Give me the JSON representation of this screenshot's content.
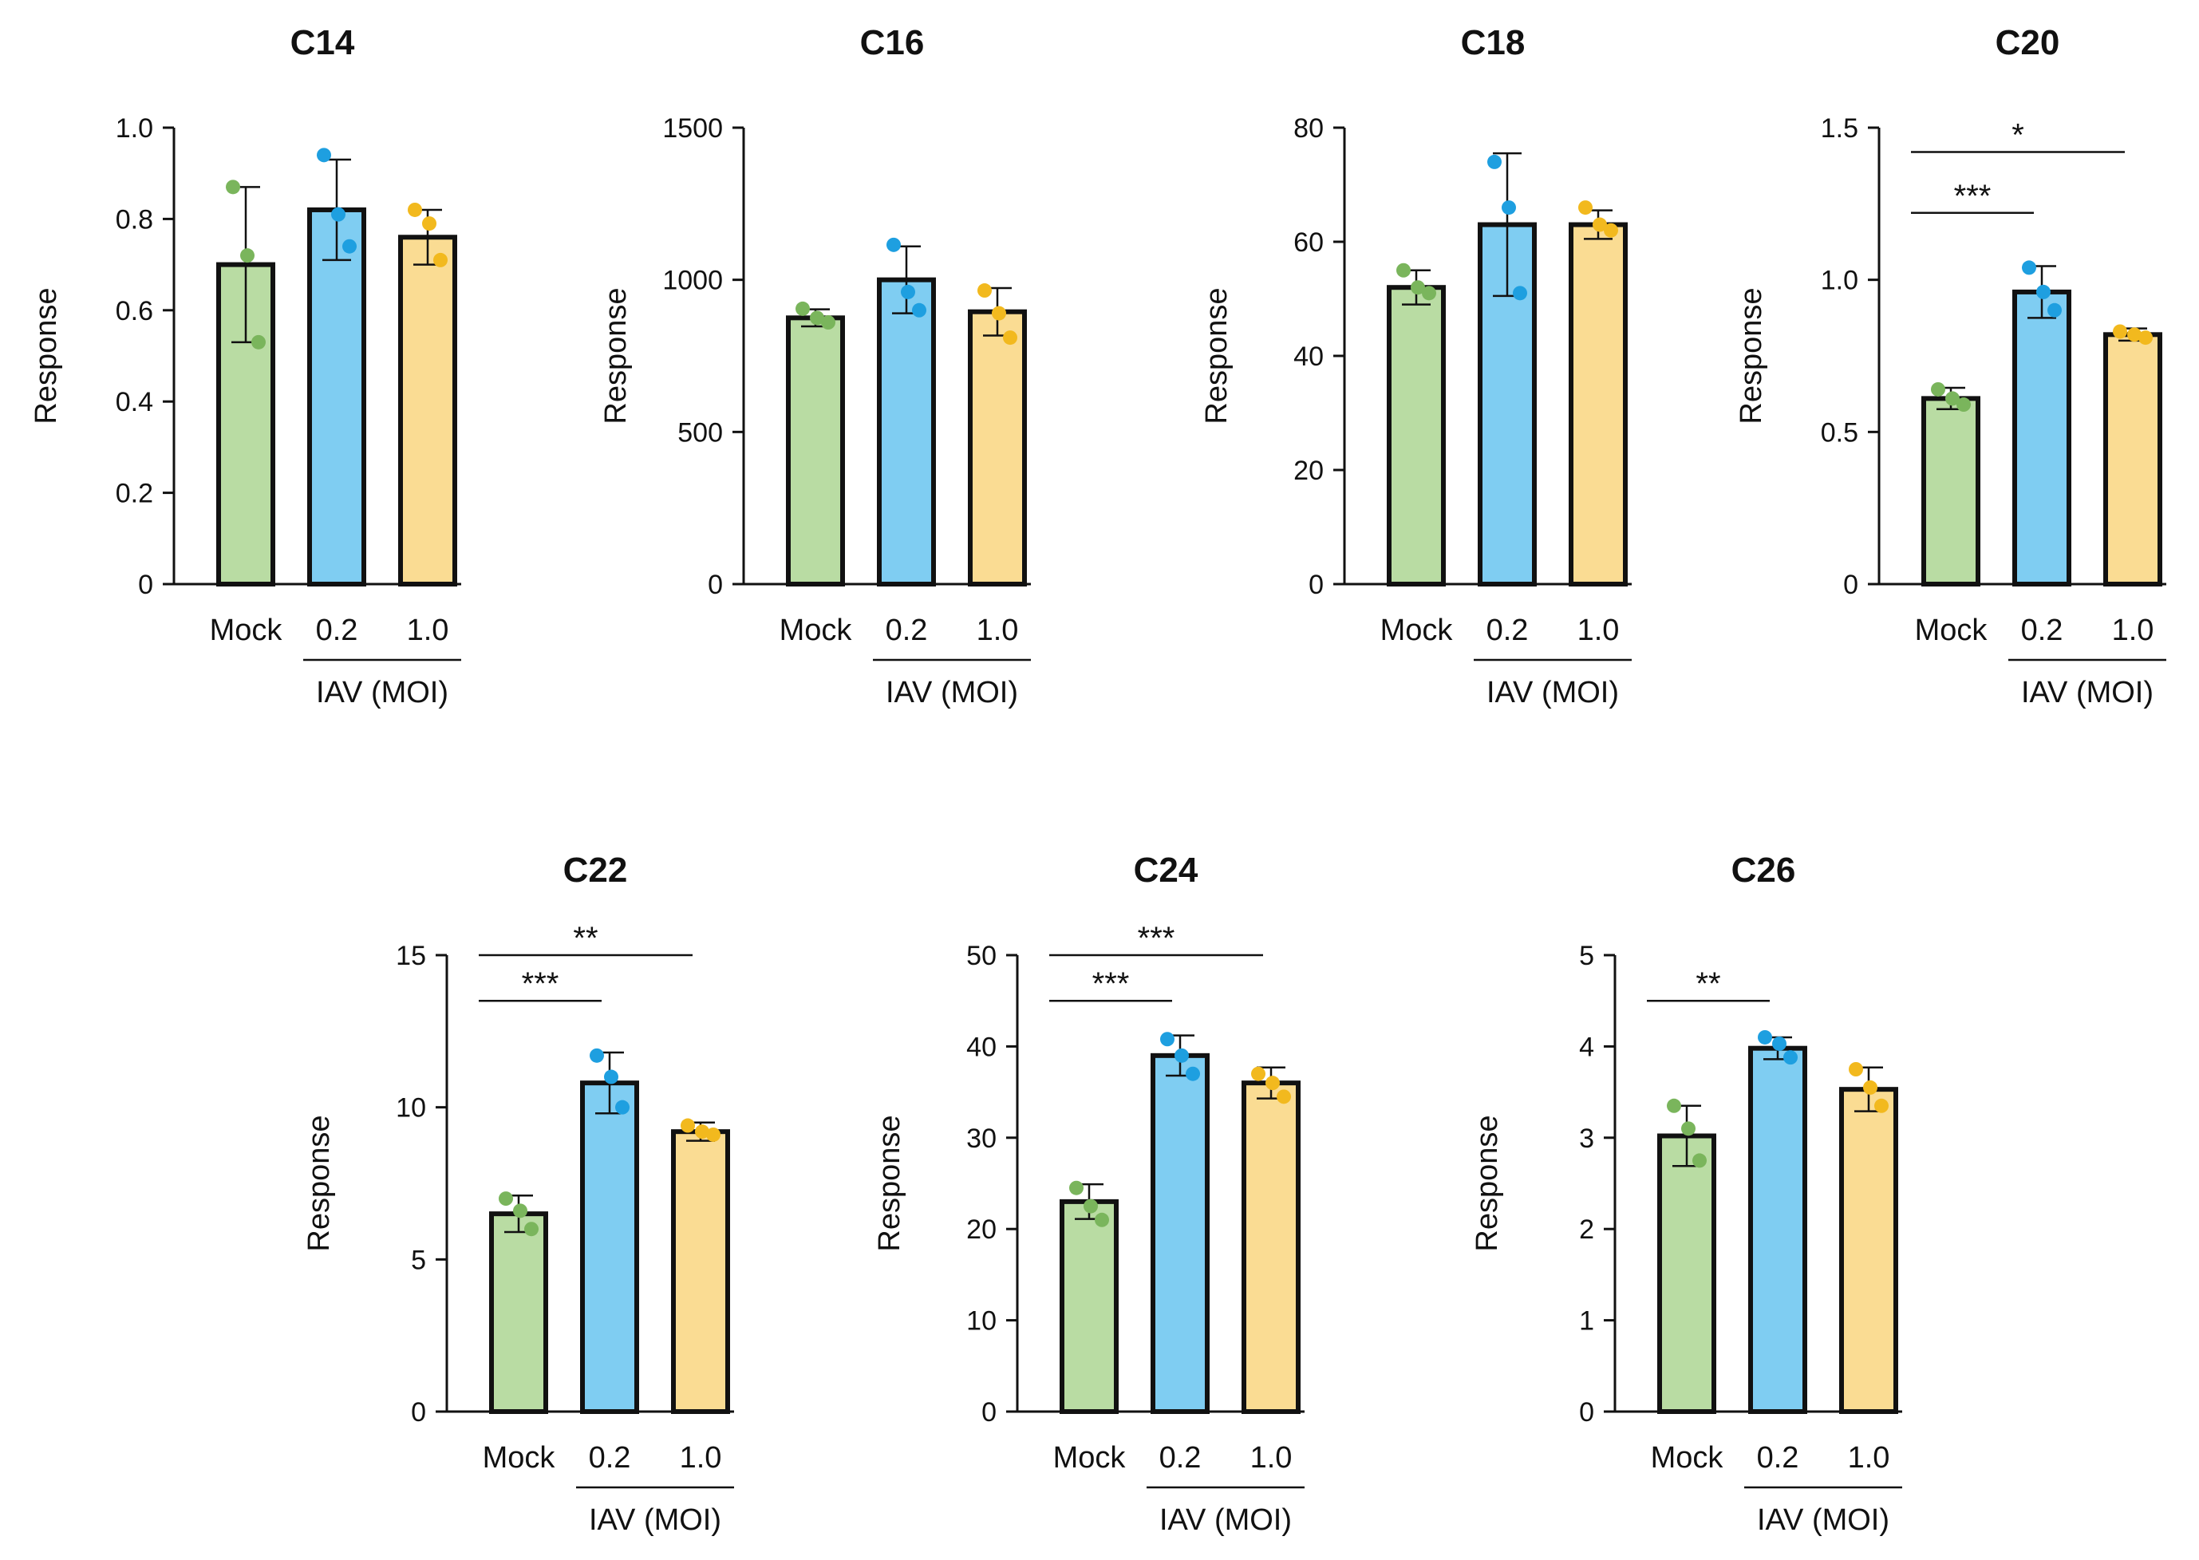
{
  "colors": {
    "mock": "#b9dca3",
    "moi02": "#7fcdf2",
    "moi10": "#fadc93",
    "mock_dot": "#7ab55c",
    "moi02_dot": "#1e9fe0",
    "moi10_dot": "#f2b91e",
    "axis": "#111111"
  },
  "chart_data": [
    {
      "type": "bar",
      "title": "C14",
      "ylabel": "Response",
      "categories": [
        "Mock",
        "0.2",
        "1.0"
      ],
      "group_label": "IAV (MOI)",
      "ylim": [
        0,
        1.0
      ],
      "yticks": [
        0,
        0.2,
        0.4,
        0.6,
        0.8,
        1.0
      ],
      "ytick_labels": [
        "0",
        "0.2",
        "0.4",
        "0.6",
        "0.8",
        "1.0"
      ],
      "values": [
        0.7,
        0.82,
        0.76
      ],
      "errors": [
        0.17,
        0.11,
        0.06
      ],
      "points": [
        [
          0.87,
          0.72,
          0.53
        ],
        [
          0.94,
          0.81,
          0.74
        ],
        [
          0.82,
          0.79,
          0.71
        ]
      ],
      "significance": []
    },
    {
      "type": "bar",
      "title": "C16",
      "ylabel": "Response",
      "categories": [
        "Mock",
        "0.2",
        "1.0"
      ],
      "group_label": "IAV (MOI)",
      "ylim": [
        0,
        1500
      ],
      "yticks": [
        0,
        500,
        1000,
        1500
      ],
      "ytick_labels": [
        "0",
        "500",
        "1000",
        "1500"
      ],
      "values": [
        875,
        1000,
        895
      ],
      "errors": [
        28,
        110,
        78
      ],
      "points": [
        [
          905,
          875,
          860
        ],
        [
          1115,
          960,
          900
        ],
        [
          965,
          890,
          810
        ]
      ],
      "significance": []
    },
    {
      "type": "bar",
      "title": "C18",
      "ylabel": "Response",
      "categories": [
        "Mock",
        "0.2",
        "1.0"
      ],
      "group_label": "IAV (MOI)",
      "ylim": [
        0,
        80
      ],
      "yticks": [
        0,
        20,
        40,
        60,
        80
      ],
      "ytick_labels": [
        "0",
        "20",
        "40",
        "60",
        "80"
      ],
      "values": [
        52,
        63,
        63
      ],
      "errors": [
        3,
        12.5,
        2.5
      ],
      "points": [
        [
          55,
          52,
          51
        ],
        [
          74,
          66,
          51
        ],
        [
          66,
          63,
          62
        ]
      ],
      "significance": []
    },
    {
      "type": "bar",
      "title": "C20",
      "ylabel": "Response",
      "categories": [
        "Mock",
        "0.2",
        "1.0"
      ],
      "group_label": "IAV (MOI)",
      "ylim": [
        0,
        1.5
      ],
      "yticks": [
        0,
        0.5,
        1.0,
        1.5
      ],
      "ytick_labels": [
        "0",
        "0.5",
        "1.0",
        "1.5"
      ],
      "values": [
        0.61,
        0.96,
        0.82
      ],
      "errors": [
        0.035,
        0.085,
        0.02
      ],
      "points": [
        [
          0.64,
          0.61,
          0.59
        ],
        [
          1.04,
          0.96,
          0.9
        ],
        [
          0.83,
          0.82,
          0.81
        ]
      ],
      "significance": [
        {
          "from": 0,
          "to": 1,
          "label": "***",
          "y": 1.22
        },
        {
          "from": 0,
          "to": 2,
          "label": "*",
          "y": 1.42
        }
      ]
    },
    {
      "type": "bar",
      "title": "C22",
      "ylabel": "Response",
      "categories": [
        "Mock",
        "0.2",
        "1.0"
      ],
      "group_label": "IAV (MOI)",
      "ylim": [
        0,
        15
      ],
      "yticks": [
        0,
        5,
        10,
        15
      ],
      "ytick_labels": [
        "0",
        "5",
        "10",
        "15"
      ],
      "values": [
        6.5,
        10.8,
        9.2
      ],
      "errors": [
        0.6,
        1.0,
        0.3
      ],
      "points": [
        [
          7.0,
          6.6,
          6.0
        ],
        [
          11.7,
          11.0,
          10.0
        ],
        [
          9.4,
          9.2,
          9.1
        ]
      ],
      "significance": [
        {
          "from": 0,
          "to": 1,
          "label": "***",
          "y": 13.5
        },
        {
          "from": 0,
          "to": 2,
          "label": "**",
          "y": 15.0
        }
      ]
    },
    {
      "type": "bar",
      "title": "C24",
      "ylabel": "Response",
      "categories": [
        "Mock",
        "0.2",
        "1.0"
      ],
      "group_label": "IAV (MOI)",
      "ylim": [
        0,
        50
      ],
      "yticks": [
        0,
        10,
        20,
        30,
        40,
        50
      ],
      "ytick_labels": [
        "0",
        "10",
        "20",
        "30",
        "40",
        "50"
      ],
      "values": [
        23,
        39,
        36
      ],
      "errors": [
        1.9,
        2.2,
        1.7
      ],
      "points": [
        [
          24.5,
          22.5,
          21.0
        ],
        [
          40.8,
          39.0,
          37.0
        ],
        [
          37.0,
          36.0,
          34.5
        ]
      ],
      "significance": [
        {
          "from": 0,
          "to": 1,
          "label": "***",
          "y": 45.0
        },
        {
          "from": 0,
          "to": 2,
          "label": "***",
          "y": 50.0
        }
      ]
    },
    {
      "type": "bar",
      "title": "C26",
      "ylabel": "Response",
      "categories": [
        "Mock",
        "0.2",
        "1.0"
      ],
      "group_label": "IAV (MOI)",
      "ylim": [
        0,
        5
      ],
      "yticks": [
        0,
        1,
        2,
        3,
        4,
        5
      ],
      "ytick_labels": [
        "0",
        "1",
        "2",
        "3",
        "4",
        "5"
      ],
      "values": [
        3.02,
        3.98,
        3.53
      ],
      "errors": [
        0.33,
        0.12,
        0.24
      ],
      "points": [
        [
          3.35,
          3.1,
          2.75
        ],
        [
          4.1,
          4.03,
          3.88
        ],
        [
          3.75,
          3.55,
          3.35
        ]
      ],
      "significance": [
        {
          "from": 0,
          "to": 1,
          "label": "**",
          "y": 4.5
        }
      ]
    }
  ]
}
